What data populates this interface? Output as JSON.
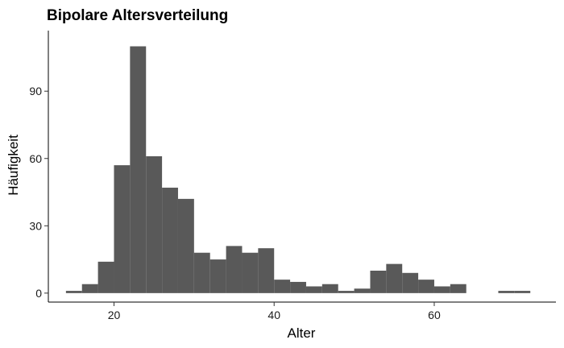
{
  "chart_data": {
    "type": "bar",
    "title": "Bipolare Altersverteilung",
    "xlabel": "Alter",
    "ylabel": "Häufigkeit",
    "bin_width": 2,
    "bins_left_edges": [
      14,
      16,
      18,
      20,
      22,
      24,
      26,
      28,
      30,
      32,
      34,
      36,
      38,
      40,
      42,
      44,
      46,
      48,
      50,
      52,
      54,
      56,
      58,
      60,
      62,
      64,
      66,
      68,
      70
    ],
    "values": [
      1,
      4,
      14,
      57,
      110,
      61,
      47,
      42,
      18,
      15,
      21,
      18,
      20,
      6,
      5,
      3,
      4,
      1,
      2,
      10,
      13,
      9,
      6,
      3,
      4,
      0,
      0,
      1,
      1
    ],
    "xlim": [
      11.8,
      75.2
    ],
    "ylim": [
      -4,
      117
    ],
    "xticks": [
      20,
      40,
      60
    ],
    "yticks": [
      0,
      30,
      60,
      90
    ],
    "bar_color": "#595959",
    "grid": false,
    "legend": "none"
  }
}
